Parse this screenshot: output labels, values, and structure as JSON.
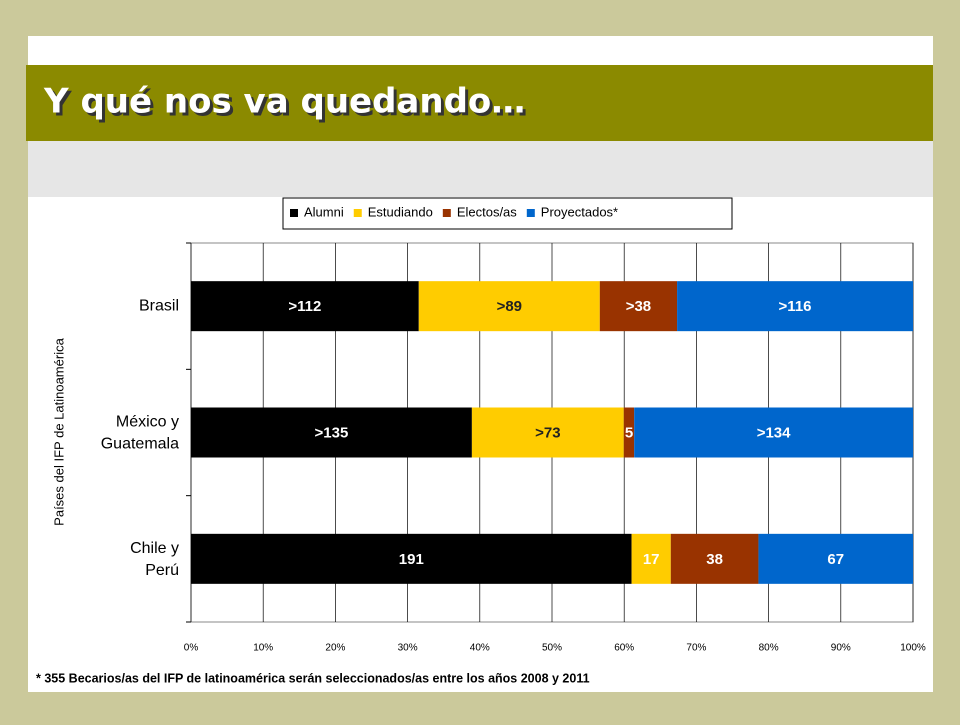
{
  "header": {
    "title": "Y qué nos va quedando…"
  },
  "chart_data": {
    "type": "stacked-bar-percent",
    "y_label": "Países del IFP de Latinoamérica",
    "categories": [
      "Brasil",
      "México y Guatemala",
      "Chile y Perú"
    ],
    "series": [
      {
        "name": "Alumni",
        "color": "#000000",
        "values": [
          112,
          135,
          191
        ],
        "value_labels": [
          ">112",
          ">135",
          "191"
        ]
      },
      {
        "name": "Estudiando",
        "color": "#ffcc00",
        "values": [
          89,
          73,
          17
        ],
        "value_labels": [
          ">89",
          ">73",
          "17"
        ]
      },
      {
        "name": "Electos/as",
        "color": "#993300",
        "values": [
          38,
          5,
          38
        ],
        "value_labels": [
          ">38",
          "5",
          "38"
        ]
      },
      {
        "name": "Proyectados*",
        "color": "#0066cc",
        "values": [
          116,
          134,
          67
        ],
        "value_labels": [
          ">116",
          ">134",
          "67"
        ]
      }
    ],
    "xlim": [
      0,
      100
    ],
    "xticks": [
      {
        "value": 0,
        "label": "0%"
      },
      {
        "value": 10,
        "label": "10%"
      },
      {
        "value": 20,
        "label": "20%"
      },
      {
        "value": 30,
        "label": "30%"
      },
      {
        "value": 40,
        "label": "40%"
      },
      {
        "value": 50,
        "label": "50%"
      },
      {
        "value": 60,
        "label": "60%"
      },
      {
        "value": 70,
        "label": "70%"
      },
      {
        "value": 80,
        "label": "80%"
      },
      {
        "value": 90,
        "label": "90%"
      },
      {
        "value": 100,
        "label": "100%"
      }
    ],
    "grid": true,
    "legend": "top",
    "footnote": "* 355 Becarios/as del IFP de latinoamérica serán seleccionados/as entre los años 2008 y 2011"
  }
}
